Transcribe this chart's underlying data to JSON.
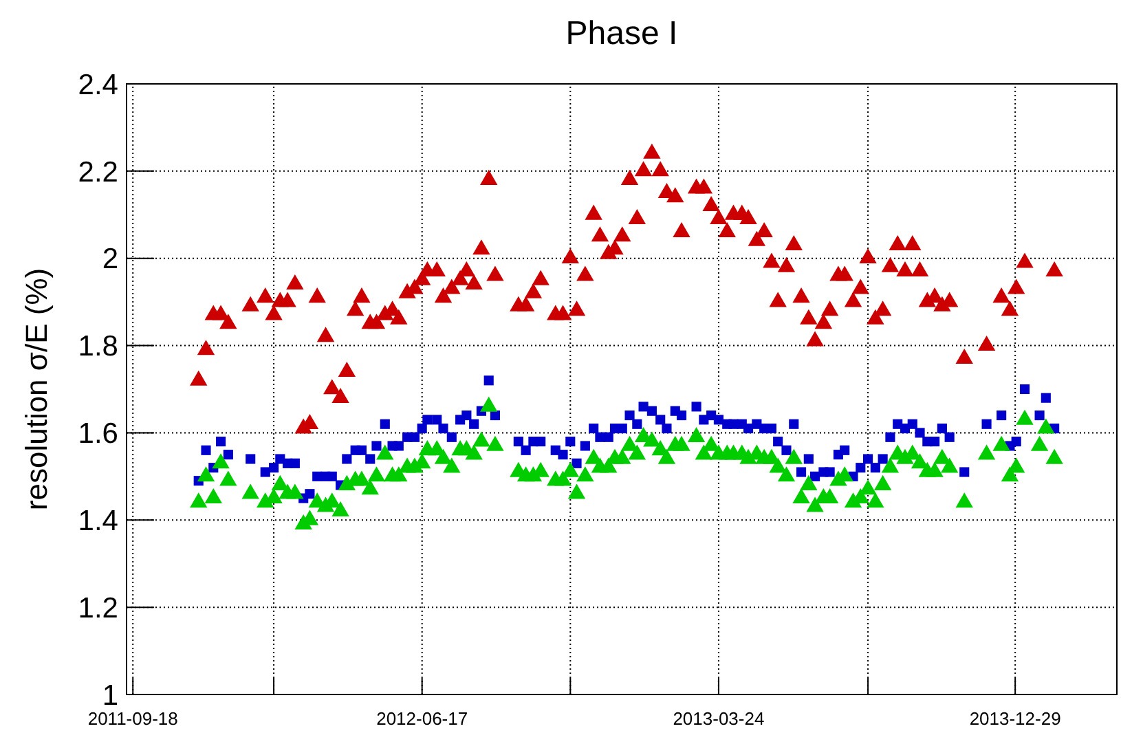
{
  "chart_data": {
    "type": "scatter",
    "title": "Phase I",
    "ylabel": "resolution σ/E (%)",
    "x": [
      "2011-11-19",
      "2011-11-26",
      "2011-12-03",
      "2011-12-10",
      "2011-12-17",
      "2012-01-07",
      "2012-01-21",
      "2012-01-29",
      "2012-02-04",
      "2012-02-11",
      "2012-02-18",
      "2012-02-26",
      "2012-03-03",
      "2012-03-10",
      "2012-03-18",
      "2012-03-24",
      "2012-04-01",
      "2012-04-07",
      "2012-04-15",
      "2012-04-21",
      "2012-04-29",
      "2012-05-05",
      "2012-05-13",
      "2012-05-20",
      "2012-05-26",
      "2012-06-03",
      "2012-06-10",
      "2012-06-17",
      "2012-06-22",
      "2012-07-01",
      "2012-07-07",
      "2012-07-15",
      "2012-07-23",
      "2012-07-29",
      "2012-08-05",
      "2012-08-12",
      "2012-08-19",
      "2012-08-25",
      "2012-09-16",
      "2012-09-23",
      "2012-09-30",
      "2012-10-07",
      "2012-10-21",
      "2012-10-28",
      "2012-11-04",
      "2012-11-10",
      "2012-11-18",
      "2012-11-26",
      "2012-12-02",
      "2012-12-10",
      "2012-12-16",
      "2012-12-23",
      "2012-12-30",
      "2013-01-06",
      "2013-01-12",
      "2013-01-20",
      "2013-01-28",
      "2013-02-03",
      "2013-02-11",
      "2013-02-17",
      "2013-03-03",
      "2013-03-10",
      "2013-03-17",
      "2013-03-24",
      "2013-04-01",
      "2013-04-07",
      "2013-04-15",
      "2013-04-21",
      "2013-04-29",
      "2013-05-06",
      "2013-05-13",
      "2013-05-19",
      "2013-05-27",
      "2013-06-03",
      "2013-06-10",
      "2013-06-17",
      "2013-06-23",
      "2013-07-01",
      "2013-07-07",
      "2013-07-15",
      "2013-07-21",
      "2013-07-29",
      "2013-08-05",
      "2013-08-12",
      "2013-08-19",
      "2013-08-26",
      "2013-09-02",
      "2013-09-09",
      "2013-09-16",
      "2013-09-23",
      "2013-09-30",
      "2013-10-07",
      "2013-10-14",
      "2013-10-21",
      "2013-10-28",
      "2013-11-11",
      "2013-12-02",
      "2013-12-16",
      "2013-12-24",
      "2013-12-30",
      "2014-01-07",
      "2014-01-21",
      "2014-01-27",
      "2014-02-04"
    ],
    "series": [
      {
        "color": "#cc0000",
        "marker": "triangle",
        "values": [
          1.72,
          1.79,
          1.87,
          1.87,
          1.85,
          1.89,
          1.91,
          1.87,
          1.9,
          1.9,
          1.94,
          1.61,
          1.62,
          1.91,
          1.82,
          1.7,
          1.68,
          1.74,
          1.88,
          1.91,
          1.85,
          1.85,
          1.87,
          1.88,
          1.86,
          1.92,
          1.93,
          1.95,
          1.97,
          1.97,
          1.91,
          1.93,
          1.95,
          1.97,
          1.94,
          2.02,
          2.18,
          1.96,
          1.89,
          1.89,
          1.92,
          1.95,
          1.87,
          1.87,
          2.0,
          1.88,
          1.96,
          2.1,
          2.05,
          2.01,
          2.02,
          2.05,
          2.18,
          2.09,
          2.2,
          2.24,
          2.2,
          2.15,
          2.14,
          2.06,
          2.16,
          2.16,
          2.12,
          2.09,
          2.06,
          2.1,
          2.1,
          2.09,
          2.04,
          2.06,
          1.99,
          1.9,
          1.98,
          2.03,
          1.91,
          1.86,
          1.81,
          1.85,
          1.88,
          1.96,
          1.96,
          1.9,
          1.93,
          2.0,
          1.86,
          1.88,
          1.98,
          2.03,
          1.97,
          2.03,
          1.97,
          1.9,
          1.91,
          1.89,
          1.9,
          1.77,
          1.8,
          1.91,
          1.88,
          1.93,
          1.99,
          null,
          null,
          1.97
        ]
      },
      {
        "color": "#0000cc",
        "marker": "square",
        "values": [
          1.49,
          1.56,
          1.52,
          1.58,
          1.55,
          1.54,
          1.51,
          1.52,
          1.54,
          1.53,
          1.53,
          1.45,
          1.46,
          1.5,
          1.5,
          1.5,
          1.48,
          1.54,
          1.56,
          1.56,
          1.54,
          1.57,
          1.62,
          1.57,
          1.57,
          1.59,
          1.59,
          1.61,
          1.63,
          1.63,
          1.61,
          1.59,
          1.63,
          1.64,
          1.62,
          1.65,
          1.72,
          1.64,
          1.58,
          1.56,
          1.58,
          1.58,
          1.56,
          1.55,
          1.58,
          1.53,
          1.57,
          1.61,
          1.59,
          1.59,
          1.61,
          1.61,
          1.64,
          1.62,
          1.66,
          1.65,
          1.63,
          1.61,
          1.65,
          1.64,
          1.66,
          1.63,
          1.64,
          1.63,
          1.62,
          1.62,
          1.62,
          1.61,
          1.62,
          1.61,
          1.61,
          1.58,
          1.56,
          1.62,
          1.51,
          1.54,
          1.5,
          1.51,
          1.51,
          1.55,
          1.56,
          1.5,
          1.52,
          1.54,
          1.52,
          1.54,
          1.59,
          1.62,
          1.61,
          1.62,
          1.6,
          1.58,
          1.58,
          1.61,
          1.59,
          1.51,
          1.62,
          1.64,
          1.57,
          1.58,
          1.7,
          1.64,
          1.68,
          1.61
        ]
      },
      {
        "color": "#00cc00",
        "marker": "triangle",
        "values": [
          1.44,
          1.5,
          1.45,
          1.53,
          1.49,
          1.46,
          1.44,
          1.45,
          1.48,
          1.46,
          1.46,
          1.39,
          1.4,
          1.44,
          1.43,
          1.44,
          1.42,
          1.48,
          1.49,
          1.49,
          1.47,
          1.5,
          1.55,
          1.5,
          1.5,
          1.52,
          1.52,
          1.53,
          1.56,
          1.56,
          1.54,
          1.52,
          1.56,
          1.56,
          1.55,
          1.58,
          1.66,
          1.57,
          1.51,
          1.5,
          1.5,
          1.51,
          1.49,
          1.49,
          1.51,
          1.46,
          1.5,
          1.54,
          1.52,
          1.52,
          1.54,
          1.54,
          1.57,
          1.55,
          1.59,
          1.58,
          1.56,
          1.54,
          1.57,
          1.57,
          1.59,
          1.55,
          1.57,
          1.55,
          1.55,
          1.55,
          1.55,
          1.54,
          1.55,
          1.54,
          1.54,
          1.52,
          1.5,
          1.54,
          1.45,
          1.48,
          1.43,
          1.45,
          1.45,
          1.49,
          1.5,
          1.44,
          1.45,
          1.47,
          1.44,
          1.48,
          1.52,
          1.55,
          1.54,
          1.55,
          1.53,
          1.51,
          1.51,
          1.54,
          1.52,
          1.44,
          1.55,
          1.57,
          1.5,
          1.52,
          1.63,
          1.57,
          1.61,
          1.54
        ]
      }
    ],
    "xlim": [
      "2011-09-12",
      "2014-04-04"
    ],
    "xticks": [
      {
        "value": "2011-09-18",
        "label": "2011-09-18"
      },
      {
        "value": "2012-01-29",
        "label": null
      },
      {
        "value": "2012-06-17",
        "label": "2012-06-17"
      },
      {
        "value": "2012-11-04",
        "label": null
      },
      {
        "value": "2013-03-24",
        "label": "2013-03-24"
      },
      {
        "value": "2013-08-12",
        "label": null
      },
      {
        "value": "2013-12-29",
        "label": "2013-12-29"
      }
    ],
    "ylim": [
      1,
      2.4
    ],
    "yticks": [
      1,
      1.2,
      1.4,
      1.6,
      1.8,
      2,
      2.2,
      2.4
    ],
    "grid": true
  }
}
